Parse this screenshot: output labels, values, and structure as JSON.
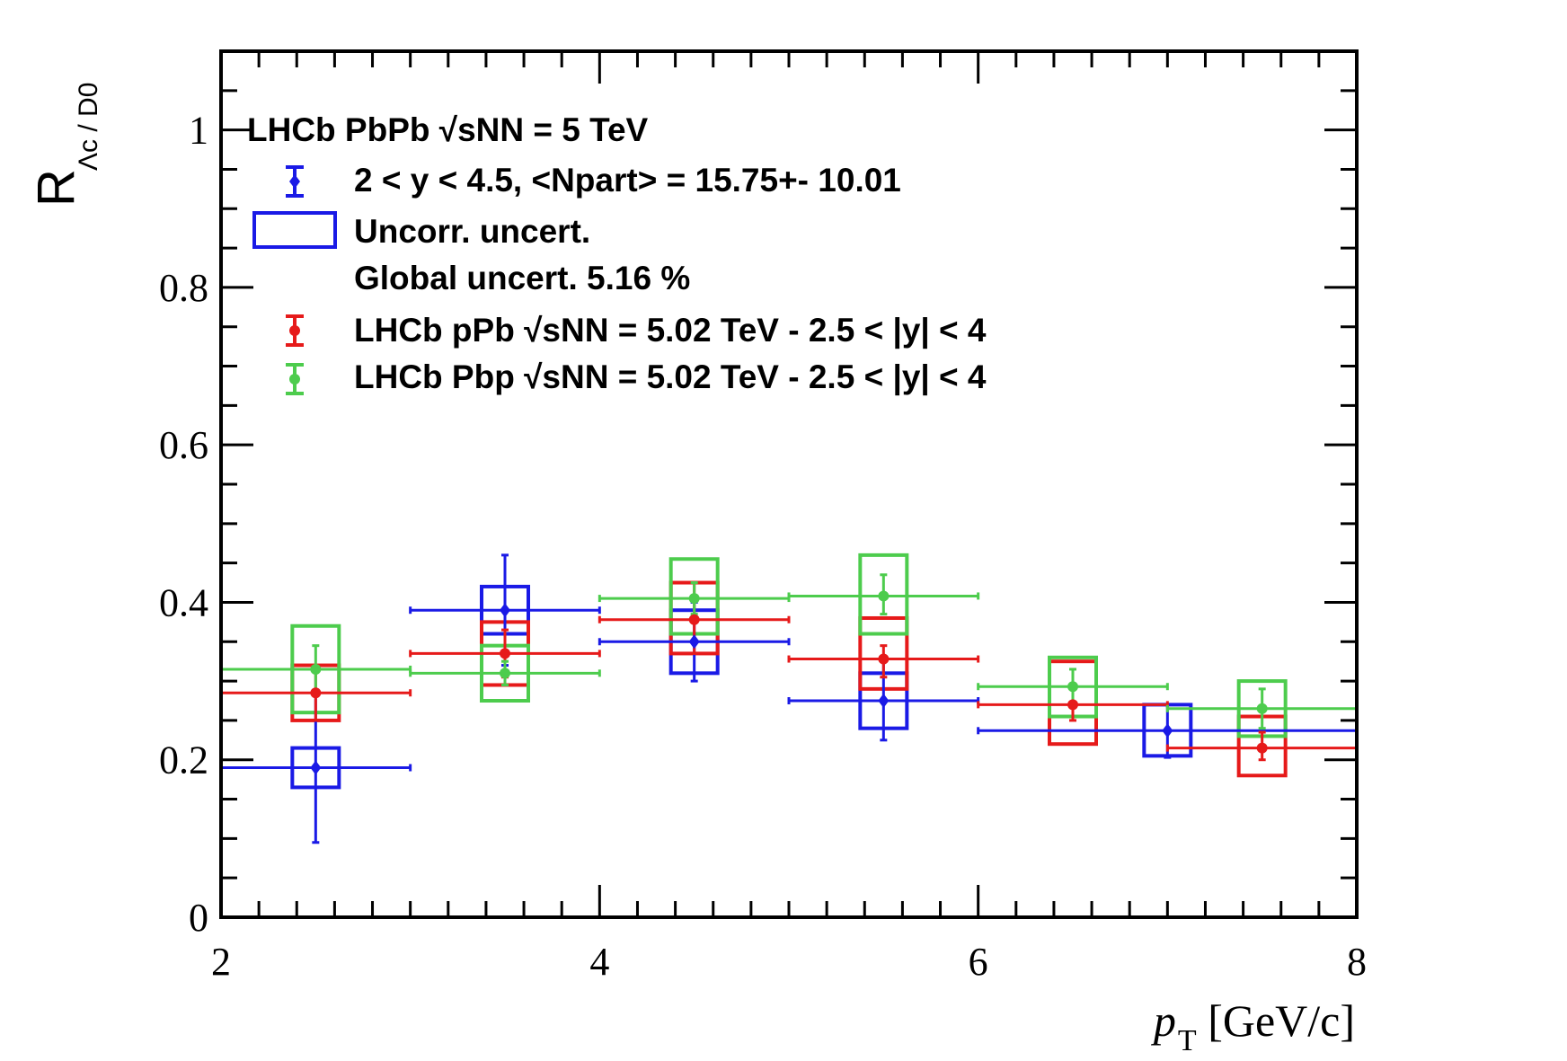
{
  "chart_data": {
    "type": "scatter",
    "title": "",
    "xlabel": {
      "main": "p",
      "sub": "T",
      "unit": " [GeV/c]"
    },
    "ylabel": {
      "main": "R",
      "sub": "Λc / D0"
    },
    "xlim": [
      2,
      8
    ],
    "ylim": [
      0,
      1.1
    ],
    "x_ticks": [
      2,
      4,
      6,
      8
    ],
    "x_tick_labels": [
      "2",
      "4",
      "6",
      "8"
    ],
    "y_ticks": [
      0,
      0.2,
      0.4,
      0.6,
      0.8,
      1
    ],
    "y_tick_labels": [
      "0",
      "0.2",
      "0.4",
      "0.6",
      "0.8",
      "1"
    ],
    "legend": {
      "placement": "top-left",
      "header": "LHCb PbPb  √sNN = 5 TeV",
      "entries": [
        {
          "label": "2 <  y < 4.5, <Npart> = 15.75+- 10.01",
          "color": "#1a1ae6"
        },
        {
          "label": "Uncorr. uncert.",
          "color": "#1a1ae6"
        },
        {
          "label": "Global uncert. 5.16 %",
          "color": ""
        },
        {
          "label": "LHCb pPb  √sNN = 5.02 TeV - 2.5 < |y| < 4",
          "color": "#e61a1a"
        },
        {
          "label": "LHCb Pbp  √sNN = 5.02 TeV - 2.5 < |y| < 4",
          "color": "#4dcc4d"
        }
      ]
    },
    "series": [
      {
        "name": "LHCb PbPb 2 < y < 4.5",
        "color": "#1a1ae6",
        "marker": "diamond",
        "points": [
          {
            "x": 2.5,
            "xlo": 2,
            "xhi": 3,
            "y": 0.19,
            "stat_lo": 0.095,
            "stat_hi": 0.285,
            "box_lo": 0.165,
            "box_hi": 0.215
          },
          {
            "x": 3.5,
            "xlo": 3,
            "xhi": 4,
            "y": 0.39,
            "stat_lo": 0.32,
            "stat_hi": 0.46,
            "box_lo": 0.36,
            "box_hi": 0.42
          },
          {
            "x": 4.5,
            "xlo": 4,
            "xhi": 5,
            "y": 0.35,
            "stat_lo": 0.3,
            "stat_hi": 0.4,
            "box_lo": 0.31,
            "box_hi": 0.39
          },
          {
            "x": 5.5,
            "xlo": 5,
            "xhi": 6,
            "y": 0.275,
            "stat_lo": 0.225,
            "stat_hi": 0.325,
            "box_lo": 0.24,
            "box_hi": 0.31
          },
          {
            "x": 7,
            "xlo": 6,
            "xhi": 8,
            "y": 0.237,
            "stat_lo": 0.203,
            "stat_hi": 0.27,
            "box_lo": 0.205,
            "box_hi": 0.27
          }
        ]
      },
      {
        "name": "LHCb pPb",
        "color": "#e61a1a",
        "marker": "circle",
        "points": [
          {
            "x": 2.5,
            "xlo": 2,
            "xhi": 3,
            "y": 0.285,
            "stat_lo": 0.25,
            "stat_hi": 0.32,
            "box_lo": 0.25,
            "box_hi": 0.32
          },
          {
            "x": 3.5,
            "xlo": 3,
            "xhi": 4,
            "y": 0.335,
            "stat_lo": 0.305,
            "stat_hi": 0.365,
            "box_lo": 0.295,
            "box_hi": 0.375
          },
          {
            "x": 4.5,
            "xlo": 4,
            "xhi": 5,
            "y": 0.378,
            "stat_lo": 0.335,
            "stat_hi": 0.425,
            "box_lo": 0.335,
            "box_hi": 0.425
          },
          {
            "x": 5.5,
            "xlo": 5,
            "xhi": 6,
            "y": 0.328,
            "stat_lo": 0.305,
            "stat_hi": 0.345,
            "box_lo": 0.29,
            "box_hi": 0.38
          },
          {
            "x": 6.5,
            "xlo": 6,
            "xhi": 7,
            "y": 0.27,
            "stat_lo": 0.25,
            "stat_hi": 0.29,
            "box_lo": 0.22,
            "box_hi": 0.325
          },
          {
            "x": 7.5,
            "xlo": 7,
            "xhi": 8,
            "y": 0.215,
            "stat_lo": 0.2,
            "stat_hi": 0.235,
            "box_lo": 0.18,
            "box_hi": 0.255
          }
        ]
      },
      {
        "name": "LHCb Pbp",
        "color": "#4dcc4d",
        "marker": "circle",
        "points": [
          {
            "x": 2.5,
            "xlo": 2,
            "xhi": 3,
            "y": 0.315,
            "stat_lo": 0.285,
            "stat_hi": 0.345,
            "box_lo": 0.26,
            "box_hi": 0.37
          },
          {
            "x": 3.5,
            "xlo": 3,
            "xhi": 4,
            "y": 0.31,
            "stat_lo": 0.295,
            "stat_hi": 0.325,
            "box_lo": 0.275,
            "box_hi": 0.345
          },
          {
            "x": 4.5,
            "xlo": 4,
            "xhi": 5,
            "y": 0.405,
            "stat_lo": 0.385,
            "stat_hi": 0.425,
            "box_lo": 0.36,
            "box_hi": 0.455
          },
          {
            "x": 5.5,
            "xlo": 5,
            "xhi": 6,
            "y": 0.408,
            "stat_lo": 0.385,
            "stat_hi": 0.435,
            "box_lo": 0.36,
            "box_hi": 0.46
          },
          {
            "x": 6.5,
            "xlo": 6,
            "xhi": 7,
            "y": 0.293,
            "stat_lo": 0.27,
            "stat_hi": 0.315,
            "box_lo": 0.255,
            "box_hi": 0.33
          },
          {
            "x": 7.5,
            "xlo": 7,
            "xhi": 8,
            "y": 0.265,
            "stat_lo": 0.24,
            "stat_hi": 0.29,
            "box_lo": 0.23,
            "box_hi": 0.3
          }
        ]
      }
    ]
  }
}
